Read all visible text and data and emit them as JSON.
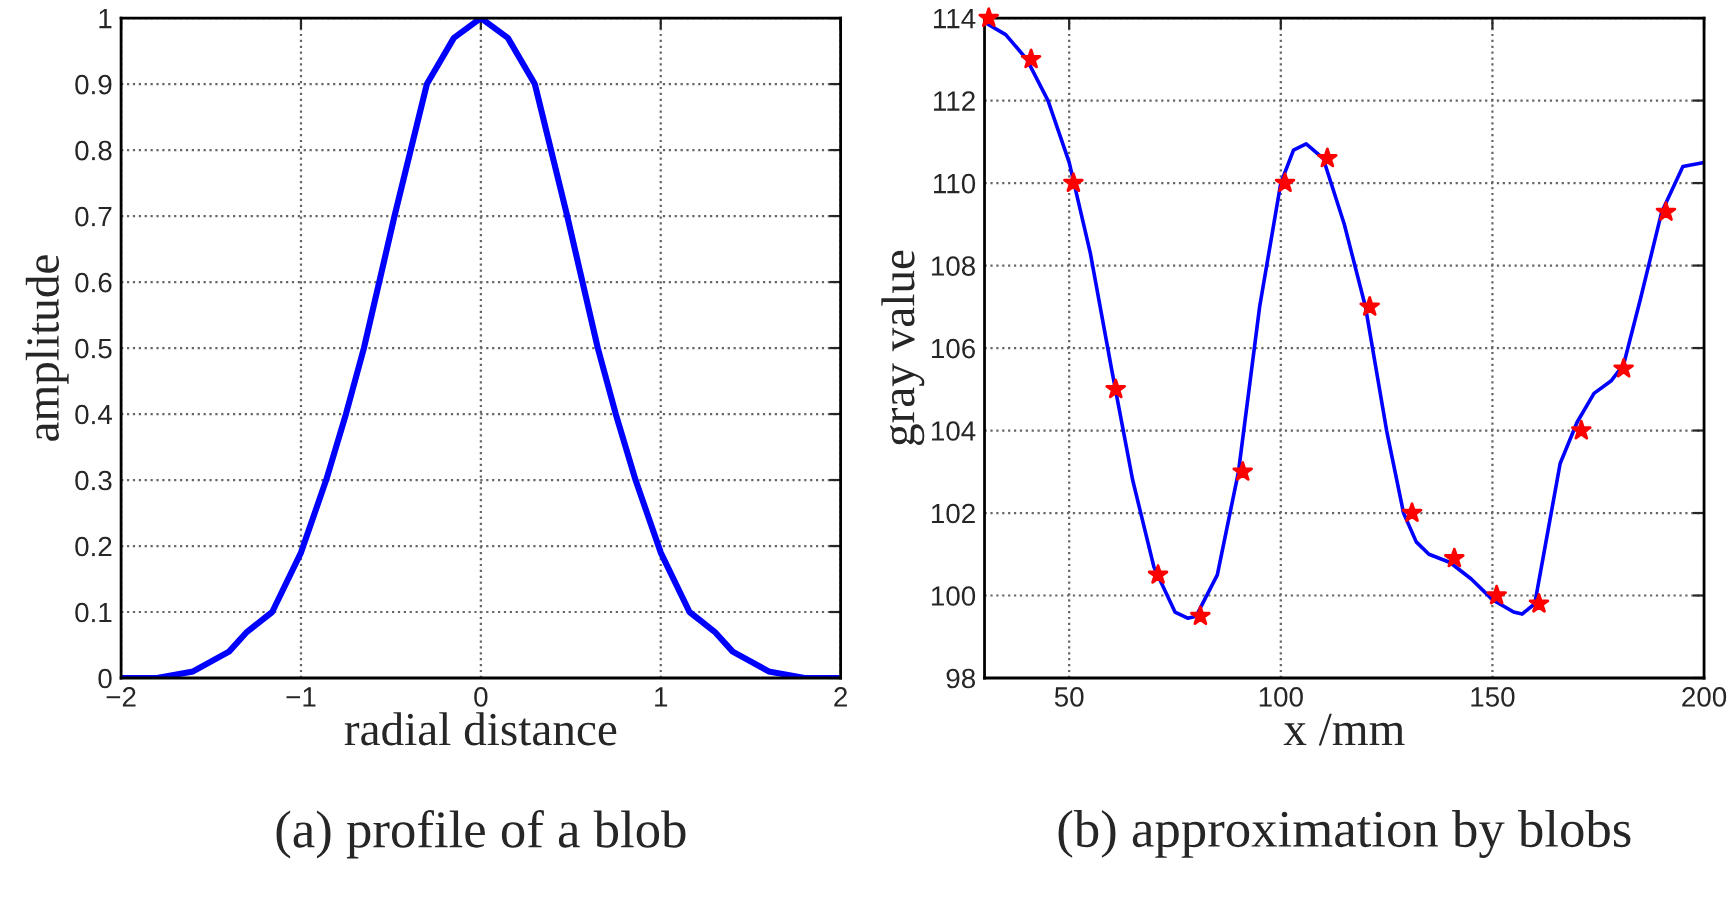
{
  "chart_data": [
    {
      "type": "line",
      "xlabel": "radial distance",
      "ylabel": "amplitude",
      "annotations": [
        "(a) profile of a blob"
      ],
      "xlim": [
        -2,
        2
      ],
      "xticks": [
        {
          "value": -2,
          "label": "−2"
        },
        {
          "value": -1,
          "label": "−1"
        },
        0,
        1,
        2
      ],
      "ylim": [
        0,
        1
      ],
      "yticks": [
        0,
        0.1,
        0.2,
        0.3,
        0.4,
        0.5,
        0.6,
        0.7,
        0.8,
        0.9,
        1
      ],
      "grid": true,
      "series": [
        {
          "color": "#0000ff",
          "x": [
            -2,
            -1.8,
            -1.6,
            -1.4,
            -1.3,
            -1.16,
            -1.0,
            -0.86,
            -0.75,
            -0.65,
            -0.48,
            -0.3,
            -0.15,
            0,
            0.15,
            0.3,
            0.48,
            0.65,
            0.75,
            0.86,
            1.0,
            1.16,
            1.3,
            1.4,
            1.6,
            1.8,
            2
          ],
          "values": [
            0,
            0,
            0.01,
            0.04,
            0.07,
            0.1,
            0.19,
            0.3,
            0.4,
            0.5,
            0.7,
            0.9,
            0.97,
            1,
            0.97,
            0.9,
            0.7,
            0.5,
            0.4,
            0.3,
            0.19,
            0.1,
            0.07,
            0.04,
            0.01,
            0,
            0
          ]
        }
      ]
    },
    {
      "type": "line",
      "xlabel": "x /mm",
      "ylabel": "gray value",
      "annotations": [
        "(b) approximation by blobs"
      ],
      "xlim": [
        30,
        200
      ],
      "xticks": [
        50,
        100,
        150,
        200
      ],
      "ylim": [
        98,
        114
      ],
      "yticks": [
        98,
        100,
        102,
        104,
        106,
        108,
        110,
        112,
        114
      ],
      "grid": true,
      "series": [
        {
          "color": "#0000ff",
          "x": [
            30,
            35,
            40,
            45,
            50,
            55,
            60,
            65,
            70,
            75,
            78,
            80,
            85,
            90,
            95,
            100,
            103,
            106,
            110,
            115,
            120,
            125,
            129,
            132,
            135,
            140,
            145,
            150,
            155,
            157,
            160,
            163,
            166,
            170,
            174,
            178,
            181,
            185,
            190,
            195,
            200
          ],
          "values": [
            113.9,
            113.6,
            113.0,
            112,
            110.5,
            108.3,
            105.5,
            102.8,
            100.7,
            99.6,
            99.45,
            99.5,
            100.5,
            103,
            107,
            110,
            110.8,
            110.95,
            110.6,
            109,
            107,
            104,
            102,
            101.3,
            101.0,
            100.8,
            100.4,
            99.9,
            99.6,
            99.55,
            99.8,
            101.5,
            103.2,
            104.2,
            104.9,
            105.2,
            105.6,
            107.2,
            109.3,
            110.4,
            110.5
          ]
        },
        {
          "type": "scatter",
          "color": "#ff0000",
          "marker": "star",
          "x": [
            31,
            41,
            51,
            61,
            71,
            81,
            91,
            101,
            111,
            121,
            131,
            141,
            151,
            161,
            171,
            181,
            191
          ],
          "values": [
            114,
            113,
            110,
            105,
            100.5,
            99.5,
            103,
            110,
            110.6,
            107,
            102,
            100.9,
            100,
            99.8,
            104,
            105.5,
            109.3
          ]
        }
      ]
    }
  ]
}
